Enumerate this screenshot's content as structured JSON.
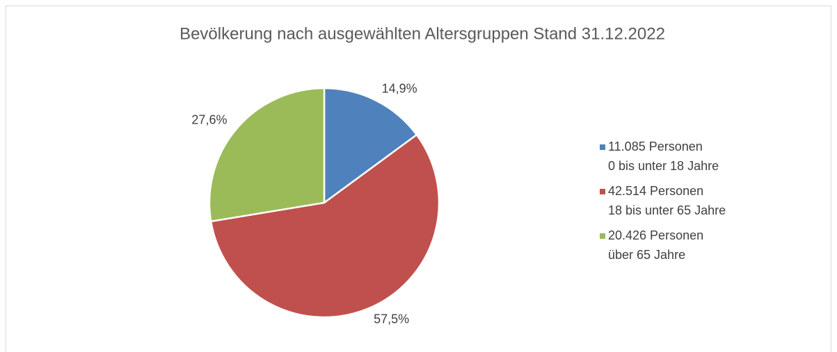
{
  "chart_data": {
    "type": "pie",
    "title": "Bevölkerung nach ausgewählten Altersgruppen Stand 31.12.2022",
    "categories": [
      [
        "11.085 Personen",
        "0 bis unter 18 Jahre"
      ],
      [
        "42.514 Personen",
        "18 bis unter 65 Jahre"
      ],
      [
        "20.426 Personen",
        "über 65 Jahre"
      ]
    ],
    "values": [
      14.9,
      57.5,
      27.6
    ],
    "value_labels": [
      "14,9%",
      "57,5%",
      "27,6%"
    ],
    "colors": [
      "#4f81bd",
      "#c0504d",
      "#9bbb59"
    ],
    "legend": "right"
  }
}
